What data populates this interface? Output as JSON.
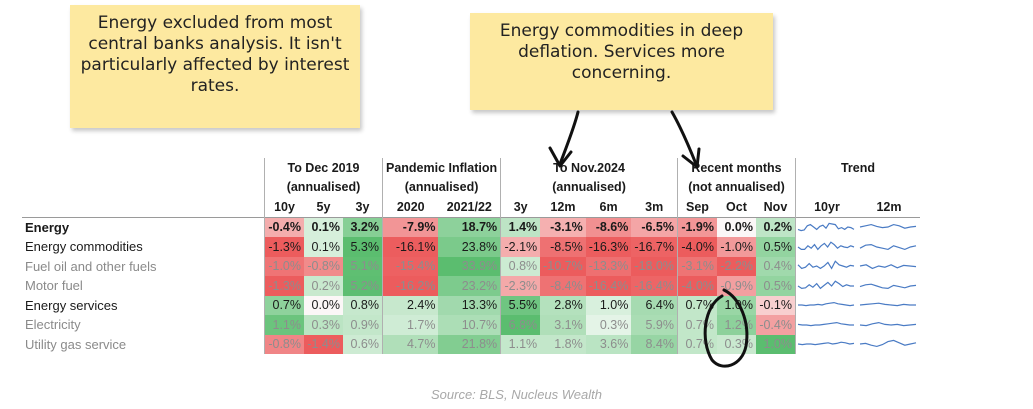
{
  "notes": {
    "left": "Energy excluded from most central banks analysis. It isn't particularly affected by interest rates.",
    "right": "Energy commodities in deep deflation. Services more concerning."
  },
  "colors": {
    "red_strong": "#ec5c5d",
    "red_soft": "#f6b8b8",
    "green_strong": "#5bbd6f",
    "green_soft": "#b9e2be",
    "neutral": "#fbf4f4",
    "spark": "#4a7bc4"
  },
  "chart_data": {
    "type": "table",
    "groups": [
      {
        "title": "To Dec 2019",
        "subtitle": "(annualised)",
        "columns": [
          "10y",
          "5y",
          "3y"
        ]
      },
      {
        "title": "Pandemic Inflation",
        "subtitle": "(annualised)",
        "columns": [
          "2020",
          "2021/22"
        ]
      },
      {
        "title": "To Nov.2024",
        "subtitle": "(annualised)",
        "columns": [
          "3y",
          "12m",
          "6m",
          "3m"
        ]
      },
      {
        "title": "Recent months",
        "subtitle": "(not annualised)",
        "columns": [
          "Sep",
          "Oct",
          "Nov"
        ]
      },
      {
        "title": "Trend",
        "subtitle": "",
        "columns": [
          "10yr",
          "12m"
        ]
      }
    ],
    "rows": [
      {
        "label": "Energy",
        "level": 0,
        "values": [
          "-0.4%",
          "0.1%",
          "3.2%",
          "-7.9%",
          "18.7%",
          "1.4%",
          "-3.1%",
          "-8.6%",
          "-6.5%",
          "-1.9%",
          "0.0%",
          "0.2%"
        ],
        "spark10": [
          0.3,
          0.2,
          0.25,
          0.6,
          0.7,
          0.5,
          0.3,
          0.55,
          0.65,
          0.4,
          0.8,
          0.75,
          0.7,
          0.35,
          0.45,
          0.3,
          0.5,
          0.45,
          0.3
        ],
        "spark12": [
          0.5,
          0.6,
          0.7,
          0.55,
          0.45,
          0.5,
          0.7,
          0.6,
          0.4,
          0.5,
          0.55
        ]
      },
      {
        "label": "Energy commodities",
        "level": 1,
        "values": [
          "-1.3%",
          "0.1%",
          "5.3%",
          "-16.1%",
          "23.8%",
          "-2.1%",
          "-8.5%",
          "-16.3%",
          "-16.7%",
          "-4.0%",
          "-1.0%",
          "0.5%"
        ],
        "spark10": [
          0.5,
          0.3,
          0.3,
          0.6,
          0.4,
          0.7,
          0.3,
          0.6,
          0.8,
          0.5,
          0.9,
          0.7,
          0.4,
          0.6,
          0.5,
          0.45,
          0.6,
          0.5
        ],
        "spark12": [
          0.4,
          0.65,
          0.7,
          0.5,
          0.4,
          0.3,
          0.6,
          0.45,
          0.3,
          0.5,
          0.6
        ]
      },
      {
        "label": "Fuel oil and other fuels",
        "level": 2,
        "values": [
          "-1.0%",
          "-0.8%",
          "5.1%",
          "-15.4%",
          "33.9%",
          "0.8%",
          "-10.7%",
          "-13.3%",
          "-18.0%",
          "-3.1%",
          "-2.2%",
          "0.4%"
        ],
        "spark10": [
          0.6,
          0.3,
          0.4,
          0.7,
          0.4,
          0.5,
          0.3,
          0.5,
          0.8,
          0.3,
          0.9,
          0.6,
          0.5,
          0.4,
          0.55,
          0.5
        ],
        "spark12": [
          0.5,
          0.6,
          0.3,
          0.5,
          0.4,
          0.6,
          0.35,
          0.55,
          0.5,
          0.45
        ]
      },
      {
        "label": "Motor fuel",
        "level": 2,
        "values": [
          "-1.3%",
          "0.2%",
          "5.2%",
          "-16.2%",
          "23.2%",
          "-2.3%",
          "-8.4%",
          "-16.4%",
          "-16.4%",
          "-4.0%",
          "-0.9%",
          "0.5%"
        ],
        "spark10": [
          0.5,
          0.3,
          0.35,
          0.6,
          0.4,
          0.7,
          0.3,
          0.55,
          0.8,
          0.5,
          0.9,
          0.7,
          0.45,
          0.6,
          0.5,
          0.5
        ],
        "spark12": [
          0.45,
          0.6,
          0.65,
          0.5,
          0.35,
          0.3,
          0.55,
          0.45,
          0.35,
          0.5,
          0.55
        ]
      },
      {
        "label": "Energy services",
        "level": 1,
        "values": [
          "0.7%",
          "0.0%",
          "0.8%",
          "2.4%",
          "13.3%",
          "5.5%",
          "2.8%",
          "1.0%",
          "6.4%",
          "0.7%",
          "1.0%",
          "-0.1%"
        ],
        "spark10": [
          0.5,
          0.5,
          0.45,
          0.5,
          0.5,
          0.55,
          0.5,
          0.6,
          0.65,
          0.7,
          0.6,
          0.55,
          0.5,
          0.45,
          0.5
        ],
        "spark12": [
          0.5,
          0.55,
          0.6,
          0.65,
          0.55,
          0.5,
          0.45,
          0.55,
          0.5,
          0.5
        ]
      },
      {
        "label": "Electricity",
        "level": 2,
        "values": [
          "1.1%",
          "0.3%",
          "0.9%",
          "1.7%",
          "10.7%",
          "6.8%",
          "3.1%",
          "0.3%",
          "5.9%",
          "0.7%",
          "1.2%",
          "-0.4%"
        ],
        "spark10": [
          0.55,
          0.5,
          0.5,
          0.45,
          0.5,
          0.5,
          0.55,
          0.6,
          0.65,
          0.7,
          0.6,
          0.55,
          0.5,
          0.5
        ],
        "spark12": [
          0.5,
          0.45,
          0.6,
          0.7,
          0.55,
          0.5,
          0.55,
          0.45,
          0.5,
          0.55
        ]
      },
      {
        "label": "Utility  gas service",
        "level": 2,
        "values": [
          "-0.8%",
          "-1.4%",
          "0.6%",
          "4.7%",
          "21.8%",
          "1.1%",
          "1.8%",
          "3.6%",
          "8.4%",
          "0.7%",
          "0.3%",
          "1.0%"
        ],
        "spark10": [
          0.5,
          0.45,
          0.5,
          0.5,
          0.45,
          0.5,
          0.55,
          0.6,
          0.5,
          0.55,
          0.65,
          0.6,
          0.5,
          0.55
        ],
        "spark12": [
          0.5,
          0.55,
          0.4,
          0.3,
          0.45,
          0.7,
          0.8,
          0.6,
          0.4,
          0.5,
          0.6
        ]
      }
    ],
    "dim_rows": [
      2,
      3,
      5,
      6
    ],
    "bold_rows": [
      0
    ]
  },
  "source": "Source: BLS, Nucleus Wealth"
}
